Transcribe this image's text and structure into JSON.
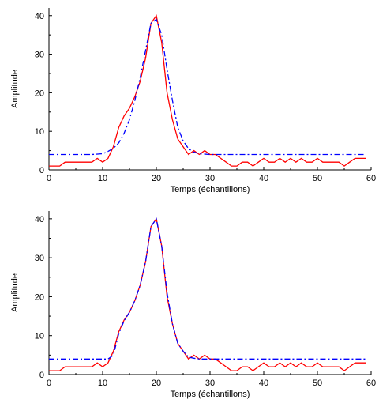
{
  "chart_data": [
    {
      "type": "line",
      "xlabel": "Temps (échantillons)",
      "ylabel": "Amplitude",
      "xlim": [
        0,
        60
      ],
      "ylim": [
        0,
        42
      ],
      "xticks": [
        "0",
        "10",
        "20",
        "30",
        "40",
        "50",
        "60"
      ],
      "yticks": [
        "0",
        "10",
        "20",
        "30",
        "40"
      ],
      "grid": false,
      "series": [
        {
          "style": "solid",
          "color": "#ff0000",
          "x": [
            0,
            1,
            2,
            3,
            4,
            5,
            6,
            7,
            8,
            9,
            10,
            11,
            12,
            13,
            14,
            15,
            16,
            17,
            18,
            19,
            20,
            21,
            22,
            23,
            24,
            25,
            26,
            27,
            28,
            29,
            30,
            31,
            32,
            33,
            34,
            35,
            36,
            37,
            38,
            39,
            40,
            41,
            42,
            43,
            44,
            45,
            46,
            47,
            48,
            49,
            50,
            51,
            52,
            53,
            54,
            55,
            56,
            57,
            58,
            59
          ],
          "y": [
            1,
            1,
            1,
            2,
            2,
            2,
            2,
            2,
            2,
            3,
            2,
            3,
            6,
            11,
            14,
            16,
            19,
            23,
            29,
            38,
            40,
            33,
            20,
            13,
            8,
            6,
            4,
            5,
            4,
            5,
            4,
            4,
            3,
            2,
            1,
            1,
            2,
            2,
            1,
            2,
            3,
            2,
            2,
            3,
            2,
            3,
            2,
            3,
            2,
            2,
            3,
            2,
            2,
            2,
            2,
            1,
            2,
            3,
            3,
            3
          ]
        },
        {
          "style": "dashdot",
          "color": "#0000ff",
          "x": [
            0,
            2,
            4,
            6,
            8,
            10,
            11,
            12,
            13,
            14,
            15,
            16,
            17,
            18,
            19,
            20,
            21,
            22,
            23,
            24,
            25,
            26,
            27,
            28,
            30,
            35,
            40,
            45,
            50,
            55,
            59
          ],
          "y": [
            4,
            4,
            4,
            4,
            4,
            4.2,
            4.8,
            5.6,
            7,
            9.5,
            13,
            18,
            24,
            31,
            38,
            39,
            35,
            26,
            18,
            11,
            7.5,
            5.5,
            4.6,
            4.2,
            4,
            4,
            4,
            4,
            4,
            4,
            4
          ]
        }
      ]
    },
    {
      "type": "line",
      "xlabel": "Temps (échantillons)",
      "ylabel": "Amplitude",
      "xlim": [
        0,
        60
      ],
      "ylim": [
        0,
        42
      ],
      "xticks": [
        "0",
        "10",
        "20",
        "30",
        "40",
        "50",
        "60"
      ],
      "yticks": [
        "0",
        "10",
        "20",
        "30",
        "40"
      ],
      "grid": false,
      "series": [
        {
          "style": "solid",
          "color": "#ff0000",
          "x": [
            0,
            1,
            2,
            3,
            4,
            5,
            6,
            7,
            8,
            9,
            10,
            11,
            12,
            13,
            14,
            15,
            16,
            17,
            18,
            19,
            20,
            21,
            22,
            23,
            24,
            25,
            26,
            27,
            28,
            29,
            30,
            31,
            32,
            33,
            34,
            35,
            36,
            37,
            38,
            39,
            40,
            41,
            42,
            43,
            44,
            45,
            46,
            47,
            48,
            49,
            50,
            51,
            52,
            53,
            54,
            55,
            56,
            57,
            58,
            59
          ],
          "y": [
            1,
            1,
            1,
            2,
            2,
            2,
            2,
            2,
            2,
            3,
            2,
            3,
            6,
            11,
            14,
            16,
            19,
            23,
            29,
            38,
            40,
            33,
            20,
            13,
            8,
            6,
            4,
            5,
            4,
            5,
            4,
            4,
            3,
            2,
            1,
            1,
            2,
            2,
            1,
            2,
            3,
            2,
            2,
            3,
            2,
            3,
            2,
            3,
            2,
            2,
            3,
            2,
            2,
            2,
            2,
            1,
            2,
            3,
            3,
            3
          ]
        },
        {
          "style": "dashdot",
          "color": "#0000ff",
          "x": [
            0,
            2,
            4,
            6,
            8,
            10,
            11,
            12,
            13,
            14,
            15,
            16,
            17,
            18,
            19,
            20,
            21,
            22,
            23,
            24,
            25,
            26,
            27,
            28,
            30,
            35,
            40,
            45,
            50,
            55,
            59
          ],
          "y": [
            4,
            4,
            4,
            4,
            4,
            4,
            4,
            5,
            10.5,
            13.8,
            16,
            19,
            23,
            29,
            38,
            40,
            33,
            21,
            13,
            8,
            6,
            4.5,
            4.2,
            4,
            4,
            4,
            4,
            4,
            4,
            4,
            4
          ]
        }
      ]
    }
  ]
}
